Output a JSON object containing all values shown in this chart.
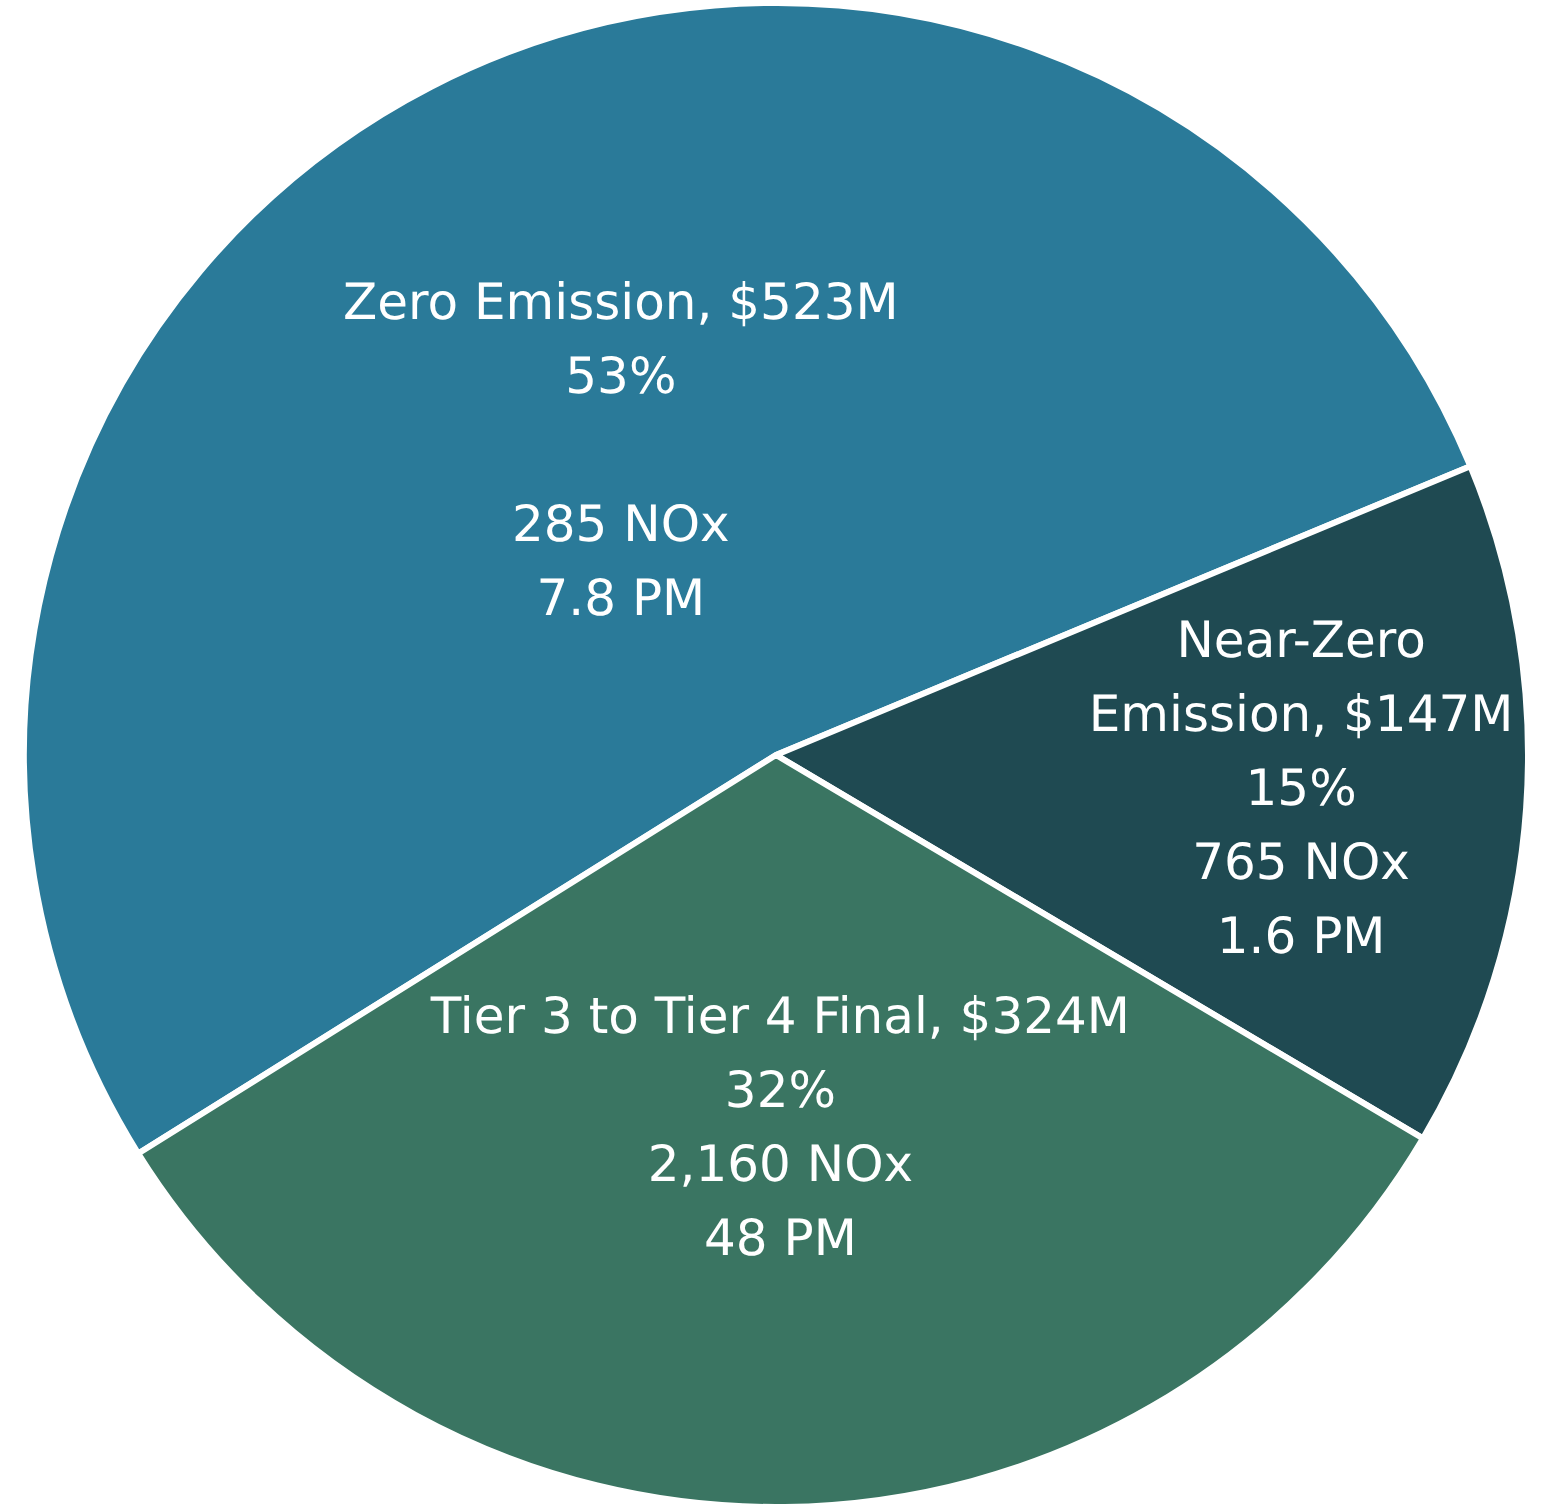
{
  "chart_data": {
    "type": "pie",
    "categories": [
      "Zero Emission",
      "Near-Zero Emission",
      "Tier 3 to Tier 4 Final"
    ],
    "values": [
      523,
      147,
      324
    ],
    "colors": [
      "#2a7a99",
      "#1f4a52",
      "#3a7562"
    ],
    "value_labels": [
      "$523M",
      "$147M",
      "$324M"
    ],
    "annotations": [
      "53%\n\n285 NOx\n7.8 PM",
      "15%\n765 NOx\n1.6 PM",
      "32%\n2,160 NOx\n48 PM"
    ],
    "legend": false
  }
}
